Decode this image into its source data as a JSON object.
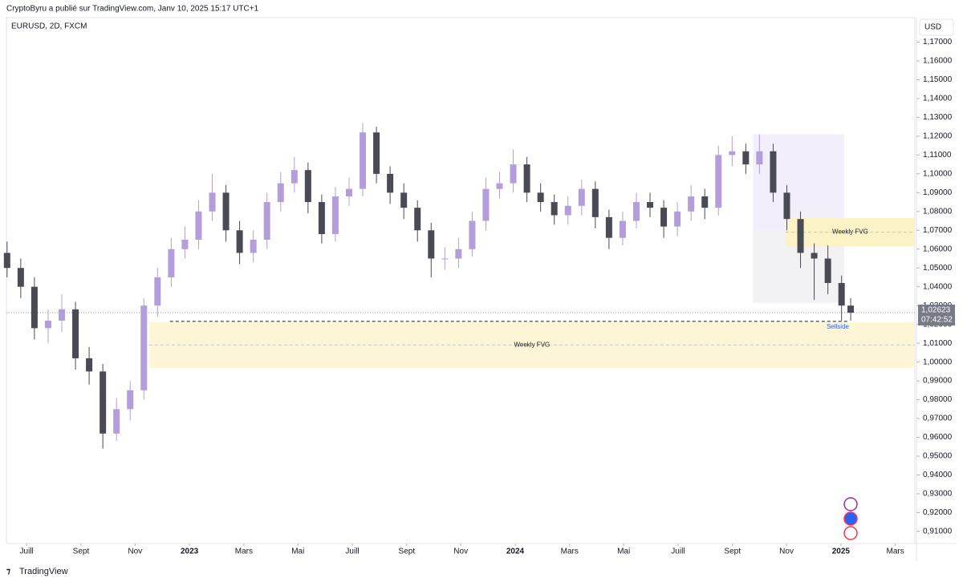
{
  "chart_data": {
    "type": "candlestick",
    "header": "CryptoByru a publié sur TradingView.com, Janv 10, 2025 15:17 UTC+1",
    "title": "EURUSD, 2D, FXCM",
    "currency": "USD",
    "footer": "TradingView",
    "up_color": "#b39ddb",
    "down_color": "#4a4a55",
    "grid": false,
    "x": [
      2022.44,
      2022.482,
      2022.524,
      2022.566,
      2022.608,
      2022.65,
      2022.692,
      2022.734,
      2022.776,
      2022.818,
      2022.86,
      2022.902,
      2022.944,
      2022.986,
      2023.028,
      2023.07,
      2023.112,
      2023.154,
      2023.196,
      2023.238,
      2023.28,
      2023.322,
      2023.364,
      2023.406,
      2023.448,
      2023.49,
      2023.532,
      2023.574,
      2023.616,
      2023.658,
      2023.7,
      2023.742,
      2023.784,
      2023.826,
      2023.868,
      2023.91,
      2023.952,
      2023.994,
      2024.036,
      2024.078,
      2024.12,
      2024.162,
      2024.204,
      2024.246,
      2024.288,
      2024.33,
      2024.372,
      2024.414,
      2024.456,
      2024.498,
      2024.54,
      2024.582,
      2024.624,
      2024.666,
      2024.708,
      2024.75,
      2024.792,
      2024.834,
      2024.876,
      2024.918,
      2024.96,
      2025.002,
      2025.03
    ],
    "open": [
      1.058,
      1.05,
      1.04,
      1.018,
      1.022,
      1.028,
      1.002,
      0.995,
      0.962,
      0.975,
      0.985,
      1.03,
      1.045,
      1.06,
      1.065,
      1.08,
      1.09,
      1.07,
      1.058,
      1.065,
      1.085,
      1.095,
      1.102,
      1.085,
      1.068,
      1.088,
      1.092,
      1.122,
      1.1,
      1.09,
      1.082,
      1.07,
      1.055,
      1.055,
      1.06,
      1.075,
      1.092,
      1.095,
      1.105,
      1.09,
      1.085,
      1.078,
      1.083,
      1.092,
      1.077,
      1.066,
      1.075,
      1.085,
      1.082,
      1.072,
      1.08,
      1.088,
      1.082,
      1.11,
      1.112,
      1.105,
      1.112,
      1.09,
      1.076,
      1.058,
      1.055,
      1.042,
      1.03
    ],
    "high": [
      1.064,
      1.055,
      1.045,
      1.028,
      1.036,
      1.032,
      1.008,
      0.999,
      0.981,
      0.99,
      1.034,
      1.05,
      1.066,
      1.072,
      1.086,
      1.1,
      1.094,
      1.075,
      1.07,
      1.09,
      1.101,
      1.109,
      1.106,
      1.089,
      1.093,
      1.098,
      1.127,
      1.125,
      1.104,
      1.095,
      1.086,
      1.074,
      1.061,
      1.066,
      1.08,
      1.098,
      1.101,
      1.113,
      1.109,
      1.095,
      1.089,
      1.088,
      1.097,
      1.096,
      1.081,
      1.08,
      1.09,
      1.09,
      1.086,
      1.085,
      1.094,
      1.092,
      1.115,
      1.12,
      1.116,
      1.121,
      1.116,
      1.094,
      1.08,
      1.063,
      1.062,
      1.046,
      1.034
    ],
    "low": [
      1.045,
      1.034,
      1.012,
      1.01,
      1.016,
      0.996,
      0.988,
      0.954,
      0.958,
      0.969,
      0.98,
      1.024,
      1.04,
      1.055,
      1.06,
      1.075,
      1.064,
      1.052,
      1.053,
      1.06,
      1.08,
      1.09,
      1.079,
      1.063,
      1.064,
      1.083,
      1.088,
      1.095,
      1.084,
      1.076,
      1.064,
      1.045,
      1.049,
      1.05,
      1.056,
      1.07,
      1.087,
      1.09,
      1.085,
      1.08,
      1.073,
      1.073,
      1.078,
      1.071,
      1.06,
      1.062,
      1.071,
      1.077,
      1.066,
      1.067,
      1.075,
      1.076,
      1.078,
      1.104,
      1.1,
      1.1,
      1.085,
      1.07,
      1.05,
      1.033,
      1.036,
      1.022,
      1.022
    ],
    "close": [
      1.05,
      1.04,
      1.018,
      1.022,
      1.028,
      1.002,
      0.995,
      0.962,
      0.975,
      0.985,
      1.03,
      1.045,
      1.06,
      1.065,
      1.08,
      1.09,
      1.07,
      1.058,
      1.065,
      1.085,
      1.095,
      1.102,
      1.085,
      1.068,
      1.088,
      1.092,
      1.122,
      1.1,
      1.09,
      1.082,
      1.07,
      1.055,
      1.055,
      1.06,
      1.075,
      1.092,
      1.095,
      1.105,
      1.09,
      1.085,
      1.078,
      1.083,
      1.092,
      1.077,
      1.066,
      1.075,
      1.085,
      1.082,
      1.072,
      1.08,
      1.088,
      1.082,
      1.11,
      1.112,
      1.105,
      1.112,
      1.09,
      1.076,
      1.058,
      1.055,
      1.042,
      1.03,
      1.02623
    ],
    "xlim": [
      2022.438,
      2025.227
    ],
    "xticks": [
      {
        "value": 2022.5,
        "label": "Juill"
      },
      {
        "value": 2022.667,
        "label": "Sept"
      },
      {
        "value": 2022.833,
        "label": "Nov"
      },
      2023,
      {
        "value": 2023.167,
        "label": "Mars"
      },
      {
        "value": 2023.333,
        "label": "Mai"
      },
      {
        "value": 2023.5,
        "label": "Juill"
      },
      {
        "value": 2023.667,
        "label": "Sept"
      },
      {
        "value": 2023.833,
        "label": "Nov"
      },
      2024,
      {
        "value": 2024.167,
        "label": "Mars"
      },
      {
        "value": 2024.333,
        "label": "Mai"
      },
      {
        "value": 2024.5,
        "label": "Juill"
      },
      {
        "value": 2024.667,
        "label": "Sept"
      },
      {
        "value": 2024.833,
        "label": "Nov"
      },
      2025,
      {
        "value": 2025.167,
        "label": "Mars"
      }
    ],
    "ylim": [
      0.904,
      1.183
    ],
    "yticks": [
      {
        "value": 0.91,
        "label": "0,91000"
      },
      {
        "value": 0.92,
        "label": "0,92000"
      },
      {
        "value": 0.93,
        "label": "0,93000"
      },
      {
        "value": 0.94,
        "label": "0,94000"
      },
      {
        "value": 0.95,
        "label": "0,95000"
      },
      {
        "value": 0.96,
        "label": "0,96000"
      },
      {
        "value": 0.97,
        "label": "0,97000"
      },
      {
        "value": 0.98,
        "label": "0,98000"
      },
      {
        "value": 0.99,
        "label": "0,99000"
      },
      {
        "value": 1.0,
        "label": "1,00000"
      },
      {
        "value": 1.01,
        "label": "1,01000"
      },
      {
        "value": 1.02,
        "label": "1,02000"
      },
      {
        "value": 1.03,
        "label": "1,03000"
      },
      {
        "value": 1.04,
        "label": "1,04000"
      },
      {
        "value": 1.05,
        "label": "1,05000"
      },
      {
        "value": 1.06,
        "label": "1,06000"
      },
      {
        "value": 1.07,
        "label": "1,07000"
      },
      {
        "value": 1.08,
        "label": "1,08000"
      },
      {
        "value": 1.09,
        "label": "1,09000"
      },
      {
        "value": 1.1,
        "label": "1,10000"
      },
      {
        "value": 1.11,
        "label": "1,11000"
      },
      {
        "value": 1.12,
        "label": "1,12000"
      },
      {
        "value": 1.13,
        "label": "1,13000"
      },
      {
        "value": 1.14,
        "label": "1,14000"
      },
      {
        "value": 1.15,
        "label": "1,15000"
      },
      {
        "value": 1.16,
        "label": "1,16000"
      },
      {
        "value": 1.17,
        "label": "1,17000"
      }
    ],
    "last_price": {
      "value": 1.02623,
      "label": "1,02623"
    },
    "countdown": "07:42:52",
    "boxes": [
      {
        "x": [
          2024.73,
          2025.01
        ],
        "y": [
          1.0703,
          1.121
        ],
        "color": "#f3effa"
      },
      {
        "x": [
          2024.73,
          2025.01
        ],
        "y": [
          1.0315,
          1.0703
        ],
        "color": "#f2f2f4"
      }
    ],
    "zones": [
      {
        "label": "Weekly FVG",
        "x": [
          2024.83,
          2025.227
        ],
        "y": [
          1.0615,
          1.0765
        ],
        "color": "#fbf3c6"
      },
      {
        "label": "Weekly FVG",
        "x": [
          2022.876,
          2025.227
        ],
        "y": [
          0.9969,
          1.0212
        ],
        "color": "#fdf6d6"
      }
    ],
    "level": {
      "label": "Sellside",
      "x": [
        2022.94,
        2025.02
      ],
      "y": 1.0216
    }
  }
}
